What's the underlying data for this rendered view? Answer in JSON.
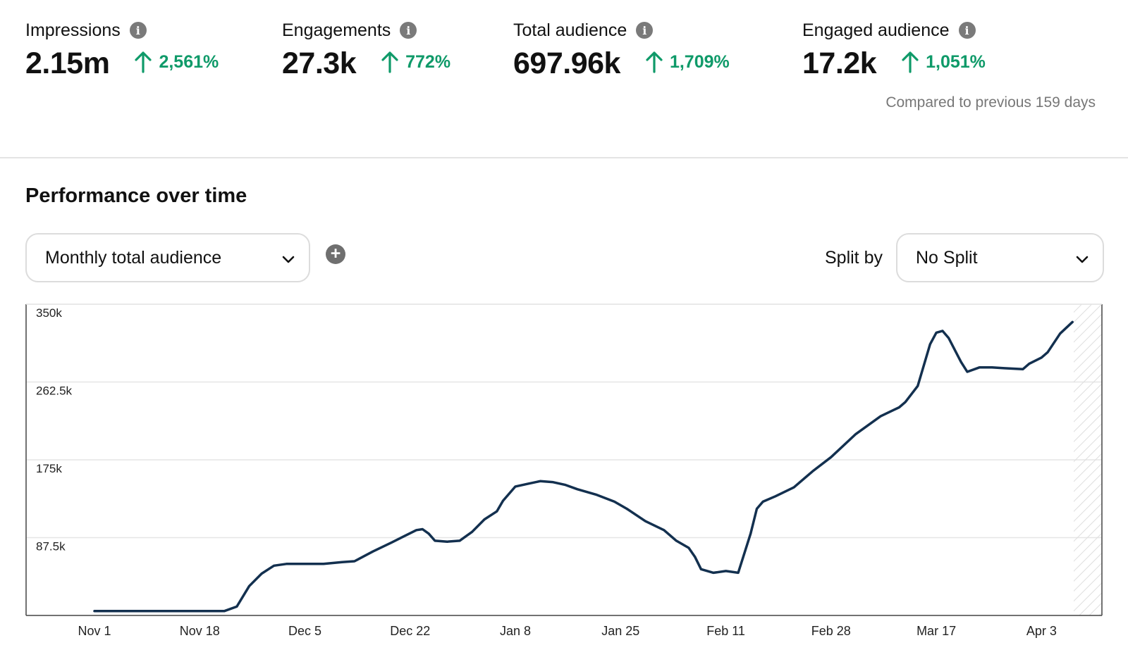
{
  "metrics": [
    {
      "label": "Impressions",
      "value": "2.15m",
      "change": "2,561%"
    },
    {
      "label": "Engagements",
      "value": "27.3k",
      "change": "772%"
    },
    {
      "label": "Total audience",
      "value": "697.96k",
      "change": "1,709%"
    },
    {
      "label": "Engaged audience",
      "value": "17.2k",
      "change": "1,051%"
    }
  ],
  "compare_note": "Compared to previous 159 days",
  "section_title": "Performance over time",
  "metric_select": {
    "value": "Monthly total audience"
  },
  "split": {
    "label": "Split by",
    "value": "No Split"
  },
  "colors": {
    "accent_green": "#0f9a69",
    "line": "#13304f"
  },
  "chart_data": {
    "type": "line",
    "title": "",
    "xlabel": "",
    "ylabel": "",
    "ylim": [
      0,
      350000
    ],
    "y_ticks": [
      87500,
      175000,
      262500,
      350000
    ],
    "y_tick_labels": [
      "87.5k",
      "175k",
      "262.5k",
      "350k"
    ],
    "x_start": "2023-11-01",
    "x_end": "2024-04-07",
    "x_ticks": [
      "Nov 1",
      "Nov 18",
      "Dec 5",
      "Dec 22",
      "Jan 8",
      "Jan 25",
      "Feb 11",
      "Feb 28",
      "Mar 17",
      "Apr 3"
    ],
    "grid": true,
    "series": [
      {
        "name": "Monthly total audience",
        "points": [
          [
            "2023-11-01",
            5000
          ],
          [
            "2023-11-10",
            5000
          ],
          [
            "2023-11-18",
            5000
          ],
          [
            "2023-11-22",
            5000
          ],
          [
            "2023-11-24",
            10000
          ],
          [
            "2023-11-26",
            33000
          ],
          [
            "2023-11-28",
            47000
          ],
          [
            "2023-11-30",
            56000
          ],
          [
            "2023-12-02",
            58000
          ],
          [
            "2023-12-05",
            58000
          ],
          [
            "2023-12-08",
            58000
          ],
          [
            "2023-12-11",
            60000
          ],
          [
            "2023-12-13",
            61000
          ],
          [
            "2023-12-16",
            72000
          ],
          [
            "2023-12-19",
            82000
          ],
          [
            "2023-12-21",
            89000
          ],
          [
            "2023-12-23",
            96000
          ],
          [
            "2023-12-24",
            97000
          ],
          [
            "2023-12-25",
            92000
          ],
          [
            "2023-12-26",
            84000
          ],
          [
            "2023-12-28",
            83000
          ],
          [
            "2023-12-30",
            84000
          ],
          [
            "2024-01-01",
            94000
          ],
          [
            "2024-01-03",
            108000
          ],
          [
            "2024-01-05",
            117000
          ],
          [
            "2024-01-06",
            129000
          ],
          [
            "2024-01-08",
            145000
          ],
          [
            "2024-01-10",
            148000
          ],
          [
            "2024-01-12",
            151000
          ],
          [
            "2024-01-14",
            150000
          ],
          [
            "2024-01-16",
            147000
          ],
          [
            "2024-01-18",
            142000
          ],
          [
            "2024-01-21",
            136000
          ],
          [
            "2024-01-24",
            128000
          ],
          [
            "2024-01-26",
            120000
          ],
          [
            "2024-01-29",
            106000
          ],
          [
            "2024-02-01",
            96000
          ],
          [
            "2024-02-03",
            84000
          ],
          [
            "2024-02-05",
            76000
          ],
          [
            "2024-02-06",
            66000
          ],
          [
            "2024-02-07",
            52000
          ],
          [
            "2024-02-09",
            48000
          ],
          [
            "2024-02-11",
            50000
          ],
          [
            "2024-02-13",
            48000
          ],
          [
            "2024-02-15",
            92000
          ],
          [
            "2024-02-16",
            120000
          ],
          [
            "2024-02-17",
            128000
          ],
          [
            "2024-02-19",
            134000
          ],
          [
            "2024-02-22",
            144000
          ],
          [
            "2024-02-25",
            162000
          ],
          [
            "2024-02-28",
            178000
          ],
          [
            "2024-03-03",
            204000
          ],
          [
            "2024-03-07",
            224000
          ],
          [
            "2024-03-10",
            234000
          ],
          [
            "2024-03-11",
            240000
          ],
          [
            "2024-03-13",
            258000
          ],
          [
            "2024-03-15",
            305000
          ],
          [
            "2024-03-16",
            318000
          ],
          [
            "2024-03-17",
            320000
          ],
          [
            "2024-03-18",
            312000
          ],
          [
            "2024-03-20",
            285000
          ],
          [
            "2024-03-21",
            274000
          ],
          [
            "2024-03-23",
            279000
          ],
          [
            "2024-03-25",
            279000
          ],
          [
            "2024-03-27",
            278000
          ],
          [
            "2024-03-30",
            277000
          ],
          [
            "2024-03-31",
            283000
          ],
          [
            "2024-04-02",
            290000
          ],
          [
            "2024-04-03",
            296000
          ],
          [
            "2024-04-05",
            317000
          ],
          [
            "2024-04-07",
            330000
          ]
        ]
      }
    ]
  }
}
